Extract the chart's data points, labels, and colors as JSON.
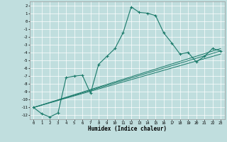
{
  "title": "",
  "xlabel": "Humidex (Indice chaleur)",
  "bg_color": "#c0dede",
  "grid_color": "#ffffff",
  "line_color": "#1a7a6a",
  "xlim": [
    -0.5,
    23.5
  ],
  "ylim": [
    -12.5,
    2.5
  ],
  "xticks": [
    0,
    1,
    2,
    3,
    4,
    5,
    6,
    7,
    8,
    9,
    10,
    11,
    12,
    13,
    14,
    15,
    16,
    17,
    18,
    19,
    20,
    21,
    22,
    23
  ],
  "yticks": [
    2,
    1,
    0,
    -1,
    -2,
    -3,
    -4,
    -5,
    -6,
    -7,
    -8,
    -9,
    -10,
    -11,
    -12
  ],
  "series": [
    [
      0,
      -11
    ],
    [
      1,
      -11.8
    ],
    [
      2,
      -12.2
    ],
    [
      3,
      -11.7
    ],
    [
      4,
      -7.2
    ],
    [
      5,
      -7.0
    ],
    [
      6,
      -6.9
    ],
    [
      7,
      -9.2
    ],
    [
      8,
      -5.5
    ],
    [
      9,
      -4.5
    ],
    [
      10,
      -3.5
    ],
    [
      11,
      -1.5
    ],
    [
      12,
      1.8
    ],
    [
      13,
      1.1
    ],
    [
      14,
      1.0
    ],
    [
      15,
      0.7
    ],
    [
      16,
      -1.5
    ],
    [
      17,
      -2.8
    ],
    [
      18,
      -4.2
    ],
    [
      19,
      -4.0
    ],
    [
      20,
      -5.2
    ],
    [
      21,
      -4.5
    ],
    [
      22,
      -3.5
    ],
    [
      23,
      -3.8
    ]
  ],
  "line2": [
    [
      0,
      -11
    ],
    [
      23,
      -3.8
    ]
  ],
  "line3": [
    [
      0,
      -11
    ],
    [
      23,
      -3.5
    ]
  ],
  "line4": [
    [
      0,
      -11
    ],
    [
      23,
      -4.2
    ]
  ]
}
